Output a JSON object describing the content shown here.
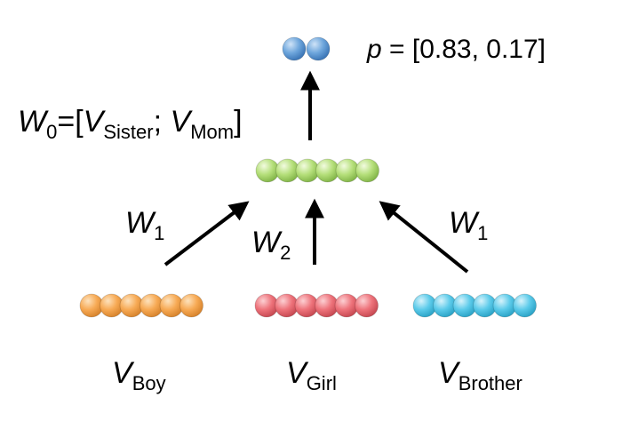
{
  "output": {
    "label_p": "p",
    "label_eq": " = ",
    "value_text": "[0.83, 0.17]",
    "values": [
      0.83,
      0.17
    ],
    "node_count": 2,
    "color": "#5b9bd5"
  },
  "w0_label": {
    "main": "W",
    "sub": "0",
    "eq_open": "=[",
    "v1_main": "V",
    "v1_sub": "Sister",
    "sep": "; ",
    "v2_main": "V",
    "v2_sub": "Mom",
    "close": "]"
  },
  "hidden": {
    "node_count": 6,
    "color": "#a9d86e"
  },
  "edges": {
    "left": {
      "main": "W",
      "sub": "1"
    },
    "center": {
      "main": "W",
      "sub": "2"
    },
    "right": {
      "main": "W",
      "sub": "1"
    }
  },
  "inputs": [
    {
      "main": "V",
      "sub": "Boy",
      "node_count": 6,
      "color": "#f5a54a"
    },
    {
      "main": "V",
      "sub": "Girl",
      "node_count": 6,
      "color": "#ef6b73"
    },
    {
      "main": "V",
      "sub": "Brother",
      "node_count": 6,
      "color": "#52c6e8"
    }
  ]
}
